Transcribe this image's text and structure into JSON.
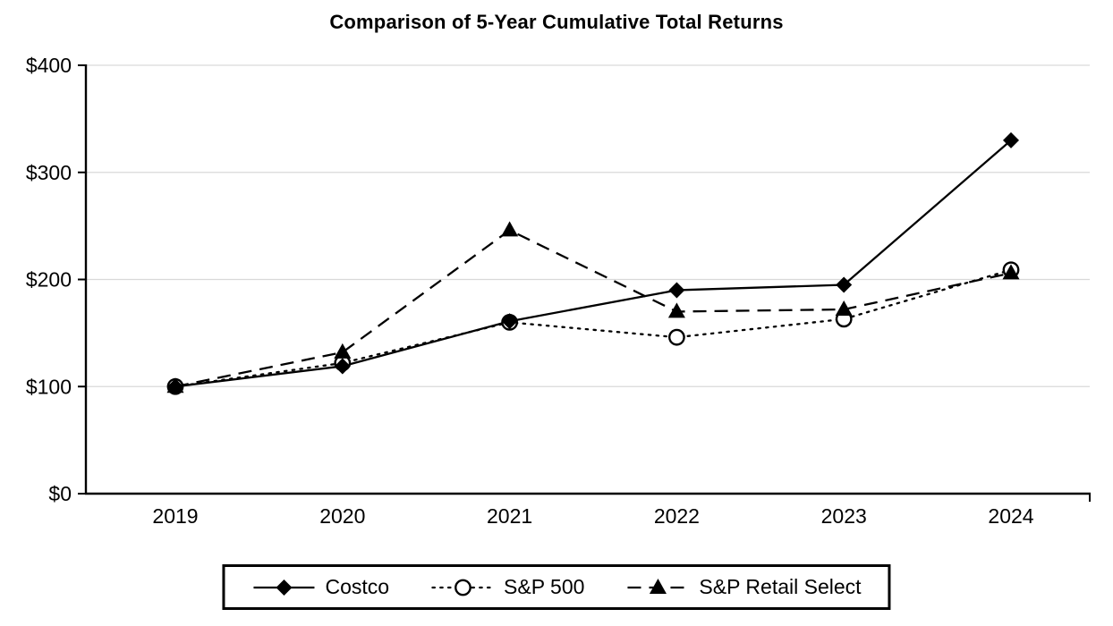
{
  "chart_data": {
    "type": "line",
    "title": "Comparison of 5-Year Cumulative Total Returns",
    "categories": [
      "2019",
      "2020",
      "2021",
      "2022",
      "2023",
      "2024"
    ],
    "series": [
      {
        "name": "Costco",
        "line": "solid",
        "marker": "diamond",
        "values": [
          100,
          119,
          161,
          190,
          195,
          330
        ]
      },
      {
        "name": "S&P 500",
        "line": "dotted",
        "marker": "circle-open",
        "values": [
          100,
          122,
          160,
          146,
          163,
          209
        ]
      },
      {
        "name": "S&P Retail Select",
        "line": "dashed",
        "marker": "triangle-filled",
        "values": [
          100,
          132,
          246,
          170,
          172,
          206
        ]
      }
    ],
    "ylim": [
      0,
      400
    ],
    "yticks": [
      0,
      100,
      200,
      300,
      400
    ],
    "ytick_prefix": "$",
    "grid": true,
    "legend_position": "bottom",
    "colors": {
      "series": "#000000",
      "grid": "#d9d9d9",
      "axis": "#000000",
      "background": "#ffffff"
    }
  }
}
